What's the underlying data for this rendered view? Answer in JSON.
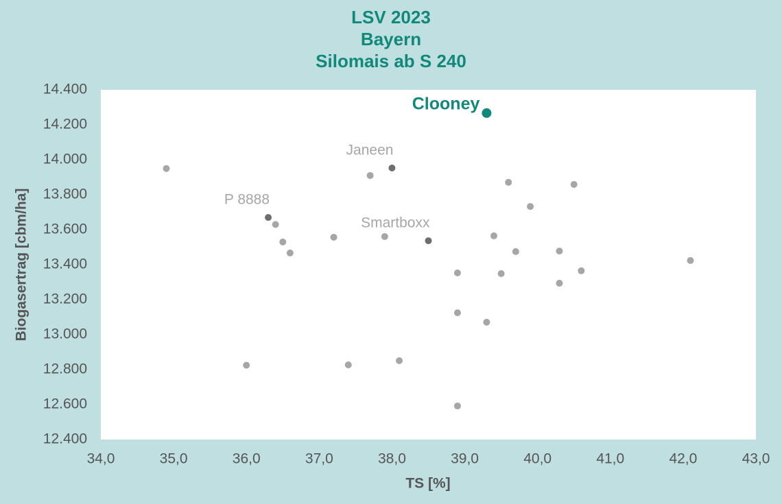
{
  "chart_data": {
    "type": "scatter",
    "title": [
      "LSV 2023",
      "Bayern",
      "Silomais ab S 240"
    ],
    "x_label": "TS [%]",
    "y_label": "Biogasertrag [cbm/ha]",
    "xlim": [
      34,
      43
    ],
    "xticks": [
      {
        "value": 34,
        "label": "34,0"
      },
      {
        "value": 35,
        "label": "35,0"
      },
      {
        "value": 36,
        "label": "36,0"
      },
      {
        "value": 37,
        "label": "37,0"
      },
      {
        "value": 38,
        "label": "38,0"
      },
      {
        "value": 39,
        "label": "39,0"
      },
      {
        "value": 40,
        "label": "40,0"
      },
      {
        "value": 41,
        "label": "41,0"
      },
      {
        "value": 42,
        "label": "42,0"
      },
      {
        "value": 43,
        "label": "43,0"
      }
    ],
    "ylim": [
      12400,
      14400
    ],
    "yticks": [
      {
        "value": 12400,
        "label": "12.400"
      },
      {
        "value": 12600,
        "label": "12.600"
      },
      {
        "value": 12800,
        "label": "12.800"
      },
      {
        "value": 13000,
        "label": "13.000"
      },
      {
        "value": 13200,
        "label": "13.200"
      },
      {
        "value": 13400,
        "label": "13.400"
      },
      {
        "value": 13600,
        "label": "13.600"
      },
      {
        "value": 13800,
        "label": "13.800"
      },
      {
        "value": 14000,
        "label": "14.000"
      },
      {
        "value": 14200,
        "label": "14.200"
      },
      {
        "value": 14400,
        "label": "14.400"
      }
    ],
    "x": [
      34.9,
      36.3,
      36.4,
      36.5,
      36.6,
      36.0,
      37.2,
      37.4,
      37.7,
      38.0,
      37.9,
      38.1,
      38.5,
      38.9,
      38.9,
      38.9,
      39.3,
      39.3,
      39.4,
      39.5,
      39.6,
      39.7,
      39.9,
      40.3,
      40.3,
      40.5,
      40.6,
      42.1
    ],
    "y": [
      13950,
      13670,
      13630,
      13530,
      13467,
      12825,
      13557,
      12827,
      13910,
      13953,
      13561,
      12851,
      13537,
      13353,
      13125,
      12592,
      14267,
      13071,
      13565,
      13349,
      13871,
      13475,
      13733,
      13478,
      13294,
      13859,
      13365,
      13424
    ],
    "labels": [
      null,
      "P 8888",
      null,
      null,
      null,
      null,
      null,
      null,
      null,
      "Janeen",
      null,
      null,
      "Smartboxx",
      null,
      null,
      null,
      "Clooney",
      null,
      null,
      null,
      null,
      null,
      null,
      null,
      null,
      null,
      null,
      null
    ],
    "colors": [
      "#a6a6a6",
      "#6e6e6e",
      "#a6a6a6",
      "#a6a6a6",
      "#a6a6a6",
      "#a6a6a6",
      "#a6a6a6",
      "#a6a6a6",
      "#a6a6a6",
      "#6e6e6e",
      "#a6a6a6",
      "#a6a6a6",
      "#6e6e6e",
      "#a6a6a6",
      "#a6a6a6",
      "#a6a6a6",
      "#10897a",
      "#a6a6a6",
      "#a6a6a6",
      "#a6a6a6",
      "#a6a6a6",
      "#a6a6a6",
      "#a6a6a6",
      "#a6a6a6",
      "#a6a6a6",
      "#a6a6a6",
      "#a6a6a6",
      "#a6a6a6"
    ],
    "highlight_color": "#10897a"
  }
}
